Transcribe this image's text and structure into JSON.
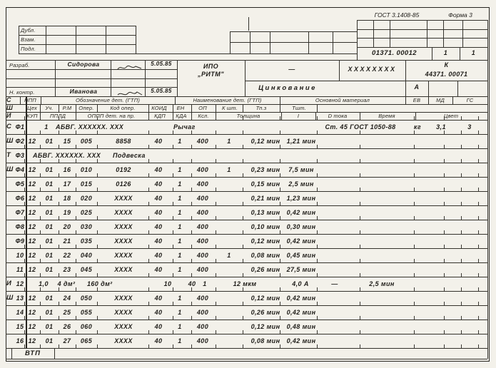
{
  "form": {
    "gost": "ГОСТ 3.1408-85",
    "forma": "Форма 3",
    "doc_number": "01371. 00012",
    "sheet": "1",
    "sheets": "1",
    "org_line1": "ИПО",
    "org_line2": "„РИТМ\"",
    "dash": "—",
    "code_mask": "XXXXXXXX",
    "k_label": "К",
    "k_number": "44371. 00071",
    "process_title": "Цинкование",
    "litera": "А",
    "vtp": "ВТП"
  },
  "stamps": {
    "rows": [
      "Дубл.",
      "Взам.",
      "Подл."
    ]
  },
  "signatures": {
    "rows": [
      {
        "role": "Разраб.",
        "name": "Сидорова",
        "date": "5.05.85"
      },
      {
        "role": "Н. контр.",
        "name": "Иванова",
        "date": "5.05.85"
      }
    ]
  },
  "table": {
    "header_c": [
      "С",
      "НПП",
      "Обозначение дет. (ГТП)",
      "Наименование дет. (ГТП)",
      "Основной материал",
      "ЕВ",
      "МД",
      "ГС"
    ],
    "header_sh": [
      "Ш",
      "Цех",
      "Уч.",
      "Р.М",
      "Опер.",
      "Код опер.",
      "КОИД",
      "ЕН",
      "ОП",
      "К шт.",
      "Тп.з",
      "Тшт."
    ],
    "header_i": [
      "И",
      "КУП",
      "ППЛД",
      "ОППП дет. на пр.",
      "КДП",
      "КДА",
      "Ксл.",
      "Толщина",
      "I",
      "D тока",
      "Время",
      "Цвет"
    ],
    "rows": [
      {
        "sym": "С",
        "num": "Ф1",
        "cells": {
          "npp": "1",
          "oboz": "АБВГ. XXXXXX. XXX",
          "naim": "Рычаг",
          "mat": "Ст. 45  ГОСТ 1050-88",
          "ev": "кг",
          "md": "3,1",
          "gs": "3"
        }
      },
      {
        "sym": "Ш",
        "num": "Ф2",
        "cells": {
          "cex": "12",
          "uch": "01",
          "rm": "15",
          "oper": "005",
          "kod": "8858",
          "koid": "40",
          "en": "1",
          "op": "400",
          "ksht": "1",
          "tpz": "0,12 мин",
          "tsht": "1,21 мин"
        }
      },
      {
        "sym": "Т",
        "num": "Ф3",
        "cells": {
          "oboz3": "АБВГ. XXXXXX. XXX",
          "naim3": "Подвеска"
        }
      },
      {
        "sym": "Ш",
        "num": "Ф4",
        "cells": {
          "cex": "12",
          "uch": "01",
          "rm": "16",
          "oper": "010",
          "kod": "0192",
          "koid": "40",
          "en": "1",
          "op": "400",
          "ksht": "1",
          "tpz": "0,23 мин",
          "tsht": "7,5 мин"
        }
      },
      {
        "sym": "",
        "num": "Ф5",
        "cells": {
          "cex": "12",
          "uch": "01",
          "rm": "17",
          "oper": "015",
          "kod": "0126",
          "koid": "40",
          "en": "1",
          "op": "400",
          "tpz": "0,15 мин",
          "tsht": "2,5 мин"
        }
      },
      {
        "sym": "",
        "num": "Ф6",
        "cells": {
          "cex": "12",
          "uch": "01",
          "rm": "18",
          "oper": "020",
          "kod": "XXXX",
          "koid": "40",
          "en": "1",
          "op": "400",
          "tpz": "0,21 мин",
          "tsht": "1,23 мин"
        }
      },
      {
        "sym": "",
        "num": "Ф7",
        "cells": {
          "cex": "12",
          "uch": "01",
          "rm": "19",
          "oper": "025",
          "kod": "XXXX",
          "koid": "40",
          "en": "1",
          "op": "400",
          "tpz": "0,13 мин",
          "tsht": "0,42 мин"
        }
      },
      {
        "sym": "",
        "num": "Ф8",
        "cells": {
          "cex": "12",
          "uch": "01",
          "rm": "20",
          "oper": "030",
          "kod": "XXXX",
          "koid": "40",
          "en": "1",
          "op": "400",
          "tpz": "0,10 мин",
          "tsht": "0,30 мин"
        }
      },
      {
        "sym": "",
        "num": "Ф9",
        "cells": {
          "cex": "12",
          "uch": "01",
          "rm": "21",
          "oper": "035",
          "kod": "XXXX",
          "koid": "40",
          "en": "1",
          "op": "400",
          "tpz": "0,12 мин",
          "tsht": "0,42 мин"
        }
      },
      {
        "sym": "",
        "num": "10",
        "cells": {
          "cex": "12",
          "uch": "01",
          "rm": "22",
          "oper": "040",
          "kod": "XXXX",
          "koid": "40",
          "en": "1",
          "op": "400",
          "ksht": "1",
          "tpz": "0,08 мин",
          "tsht": "0,45 мин"
        }
      },
      {
        "sym": "",
        "num": "11",
        "cells": {
          "cex": "12",
          "uch": "01",
          "rm": "23",
          "oper": "045",
          "kod": "XXXX",
          "koid": "40",
          "en": "1",
          "op": "400",
          "tpz": "0,26 мин",
          "tsht": "27,5 мин"
        }
      },
      {
        "sym": "И",
        "num": "12",
        "cells": {
          "kup": "1,0",
          "ppld": "4 дм²",
          "oppp": "160 дм²",
          "kdp": "10",
          "kda": "40",
          "ksl": "1",
          "tolsh": "12 мкм",
          "itok": "4,0 А",
          "dtoka": "—",
          "vremya": "2,5 мин"
        }
      },
      {
        "sym": "Ш",
        "num": "13",
        "cells": {
          "cex": "12",
          "uch": "01",
          "rm": "24",
          "oper": "050",
          "kod": "XXXX",
          "koid": "40",
          "en": "1",
          "op": "400",
          "tpz": "0,12 мин",
          "tsht": "0,42 мин"
        }
      },
      {
        "sym": "",
        "num": "14",
        "cells": {
          "cex": "12",
          "uch": "01",
          "rm": "25",
          "oper": "055",
          "kod": "XXXX",
          "koid": "40",
          "en": "1",
          "op": "400",
          "tpz": "0,26 мин",
          "tsht": "0,42 мин"
        }
      },
      {
        "sym": "",
        "num": "15",
        "cells": {
          "cex": "12",
          "uch": "01",
          "rm": "26",
          "oper": "060",
          "kod": "XXXX",
          "koid": "40",
          "en": "1",
          "op": "400",
          "tpz": "0,12 мин",
          "tsht": "0,48 мин"
        }
      },
      {
        "sym": "",
        "num": "16",
        "cells": {
          "cex": "12",
          "uch": "01",
          "rm": "27",
          "oper": "065",
          "kod": "XXXX",
          "koid": "40",
          "en": "1",
          "op": "400",
          "tpz": "0,08 мин",
          "tsht": "0,42 мин"
        }
      }
    ]
  }
}
